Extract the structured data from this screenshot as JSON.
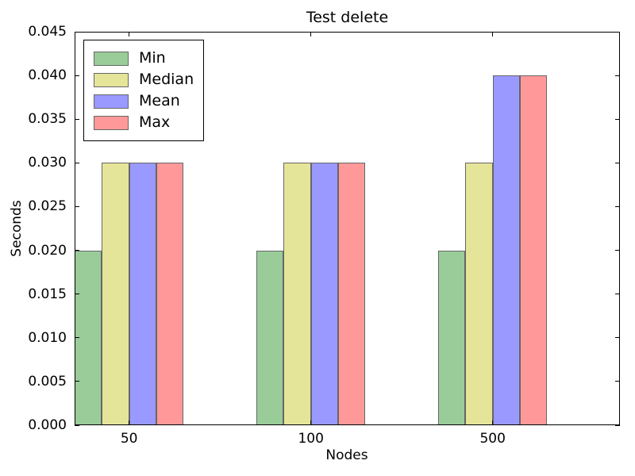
{
  "figure": {
    "title": "Test delete",
    "xlabel": "Nodes",
    "ylabel": "Seconds"
  },
  "chart_data": {
    "type": "bar",
    "title": "Test delete",
    "xlabel": "Nodes",
    "ylabel": "Seconds",
    "categories": [
      "50",
      "100",
      "500"
    ],
    "series": [
      {
        "name": "Min",
        "color": "#99CC99",
        "values": [
          0.02,
          0.02,
          0.02
        ]
      },
      {
        "name": "Median",
        "color": "#E5E599",
        "values": [
          0.03,
          0.03,
          0.03
        ]
      },
      {
        "name": "Mean",
        "color": "#9999FF",
        "values": [
          0.03,
          0.03,
          0.04
        ]
      },
      {
        "name": "Max",
        "color": "#FF9999",
        "values": [
          0.03,
          0.03,
          0.04
        ]
      }
    ],
    "bar_edge_color": "#666666",
    "ylim": [
      0,
      0.045
    ],
    "xlim": [
      0,
      3
    ],
    "bar_width": 0.15,
    "group_positions": [
      0,
      1,
      2
    ],
    "xtick_positions": [
      0.3,
      1.3,
      2.3
    ],
    "ytick_values": [
      0,
      0.005,
      0.01,
      0.015,
      0.02,
      0.025,
      0.03,
      0.035,
      0.04,
      0.045
    ],
    "ytick_labels": [
      "0.000",
      "0.005",
      "0.010",
      "0.015",
      "0.020",
      "0.025",
      "0.030",
      "0.035",
      "0.040",
      "0.045"
    ],
    "legend_position": "upper left",
    "grid": false
  }
}
